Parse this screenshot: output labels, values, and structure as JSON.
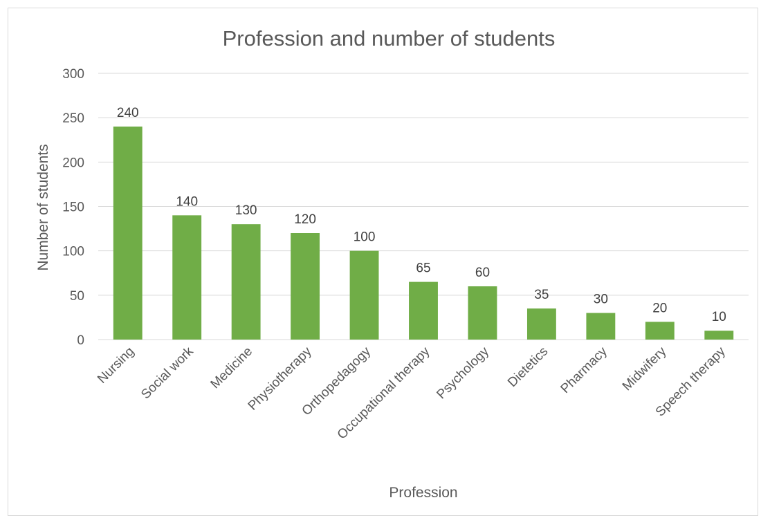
{
  "chart_data": {
    "type": "bar",
    "title": "Profession and number of students",
    "xlabel": "Profession",
    "ylabel": "Number of students",
    "categories": [
      "Nursing",
      "Social work",
      "Medicine",
      "Physiotherapy",
      "Orthopedagogy",
      "Occupational therapy",
      "Psychology",
      "Dietetics",
      "Pharmacy",
      "Midwifery",
      "Speech therapy"
    ],
    "values": [
      240,
      140,
      130,
      120,
      100,
      65,
      60,
      35,
      30,
      20,
      10
    ],
    "ylim": [
      0,
      300
    ],
    "yticks": [
      0,
      50,
      100,
      150,
      200,
      250,
      300
    ],
    "grid": true,
    "data_labels": true,
    "bar_color": "#70ad47",
    "gridline_color": "#d9d9d9",
    "text_color": "#595959"
  }
}
